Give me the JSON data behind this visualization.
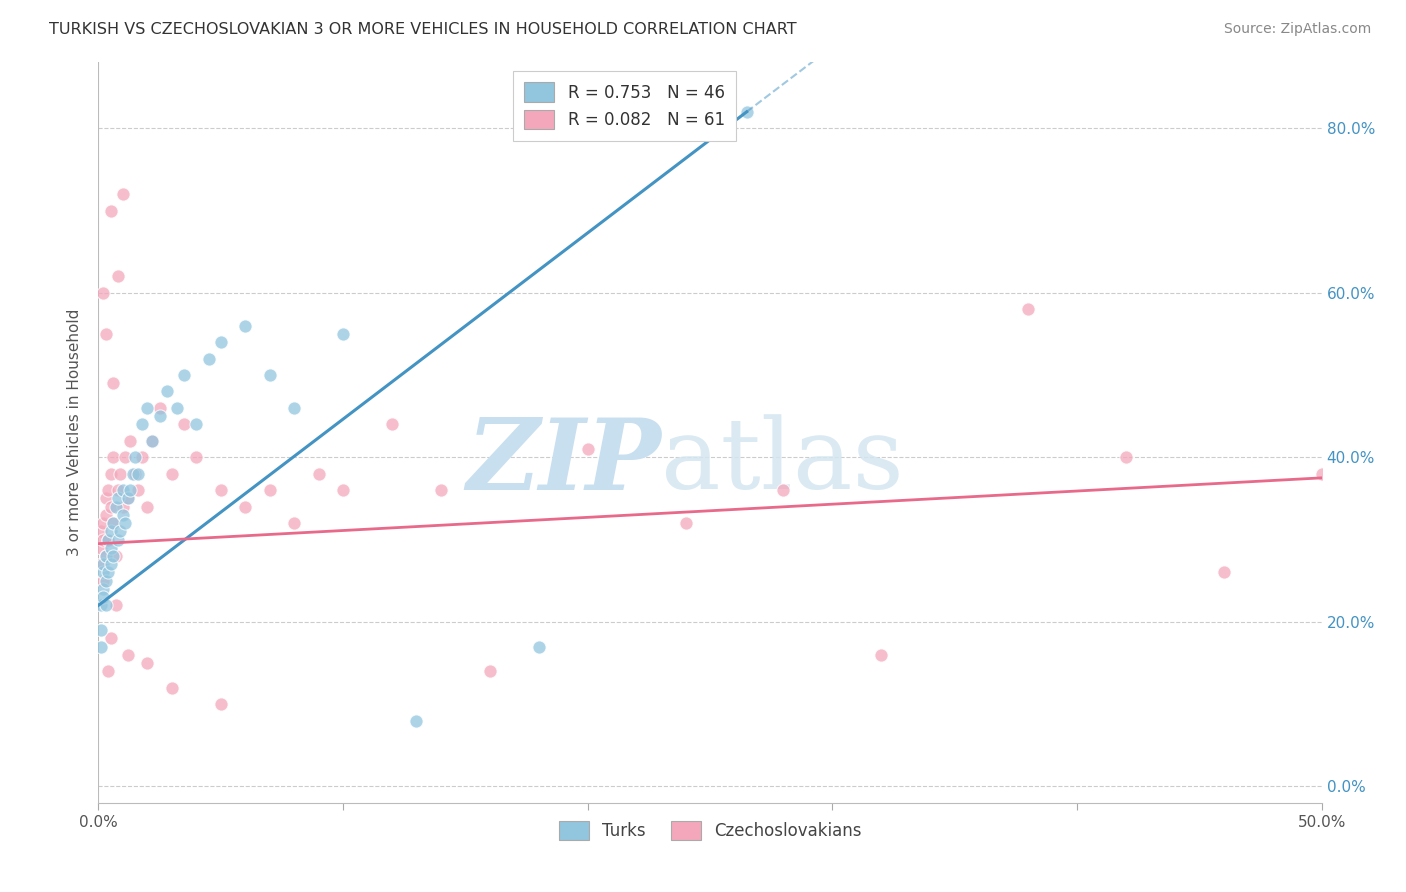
{
  "title": "TURKISH VS CZECHOSLOVAKIAN 3 OR MORE VEHICLES IN HOUSEHOLD CORRELATION CHART",
  "source": "Source: ZipAtlas.com",
  "ylabel": "3 or more Vehicles in Household",
  "ytick_vals": [
    0.0,
    0.2,
    0.4,
    0.6,
    0.8
  ],
  "xmin": 0.0,
  "xmax": 0.5,
  "ymin": -0.02,
  "ymax": 0.88,
  "legend_turks": "Turks",
  "legend_czech": "Czechoslovakians",
  "turks_R": 0.753,
  "turks_N": 46,
  "czech_R": 0.082,
  "czech_N": 61,
  "turks_color": "#92c5de",
  "czech_color": "#f4a7bb",
  "turks_line_color": "#4393c3",
  "czech_line_color": "#e8698a",
  "turks_line_x0": 0.0,
  "turks_line_y0": 0.22,
  "turks_line_x1": 0.265,
  "turks_line_y1": 0.82,
  "czech_line_x0": 0.0,
  "czech_line_y0": 0.295,
  "czech_line_x1": 0.5,
  "czech_line_y1": 0.375,
  "turks_x": [
    0.001,
    0.001,
    0.001,
    0.002,
    0.002,
    0.002,
    0.002,
    0.003,
    0.003,
    0.003,
    0.004,
    0.004,
    0.005,
    0.005,
    0.005,
    0.006,
    0.006,
    0.007,
    0.008,
    0.008,
    0.009,
    0.01,
    0.01,
    0.011,
    0.012,
    0.013,
    0.014,
    0.015,
    0.016,
    0.018,
    0.02,
    0.022,
    0.025,
    0.028,
    0.032,
    0.035,
    0.04,
    0.045,
    0.05,
    0.06,
    0.07,
    0.08,
    0.1,
    0.13,
    0.18,
    0.265
  ],
  "turks_y": [
    0.17,
    0.19,
    0.22,
    0.24,
    0.26,
    0.23,
    0.27,
    0.25,
    0.28,
    0.22,
    0.3,
    0.26,
    0.29,
    0.31,
    0.27,
    0.32,
    0.28,
    0.34,
    0.3,
    0.35,
    0.31,
    0.33,
    0.36,
    0.32,
    0.35,
    0.36,
    0.38,
    0.4,
    0.38,
    0.44,
    0.46,
    0.42,
    0.45,
    0.48,
    0.46,
    0.5,
    0.44,
    0.52,
    0.54,
    0.56,
    0.5,
    0.46,
    0.55,
    0.08,
    0.17,
    0.82
  ],
  "czech_x": [
    0.001,
    0.001,
    0.001,
    0.002,
    0.002,
    0.002,
    0.003,
    0.003,
    0.003,
    0.004,
    0.004,
    0.005,
    0.005,
    0.006,
    0.006,
    0.007,
    0.008,
    0.009,
    0.01,
    0.011,
    0.012,
    0.013,
    0.015,
    0.016,
    0.018,
    0.02,
    0.022,
    0.025,
    0.03,
    0.035,
    0.04,
    0.05,
    0.06,
    0.07,
    0.08,
    0.09,
    0.1,
    0.12,
    0.14,
    0.16,
    0.2,
    0.24,
    0.28,
    0.32,
    0.38,
    0.42,
    0.46,
    0.5,
    0.01,
    0.008,
    0.006,
    0.005,
    0.004,
    0.007,
    0.012,
    0.02,
    0.03,
    0.05,
    0.005,
    0.003,
    0.002
  ],
  "czech_y": [
    0.27,
    0.29,
    0.31,
    0.25,
    0.3,
    0.32,
    0.28,
    0.33,
    0.35,
    0.3,
    0.36,
    0.34,
    0.38,
    0.32,
    0.4,
    0.28,
    0.36,
    0.38,
    0.34,
    0.4,
    0.35,
    0.42,
    0.38,
    0.36,
    0.4,
    0.34,
    0.42,
    0.46,
    0.38,
    0.44,
    0.4,
    0.36,
    0.34,
    0.36,
    0.32,
    0.38,
    0.36,
    0.44,
    0.36,
    0.14,
    0.41,
    0.32,
    0.36,
    0.16,
    0.58,
    0.4,
    0.26,
    0.38,
    0.72,
    0.62,
    0.49,
    0.18,
    0.14,
    0.22,
    0.16,
    0.15,
    0.12,
    0.1,
    0.7,
    0.55,
    0.6
  ]
}
